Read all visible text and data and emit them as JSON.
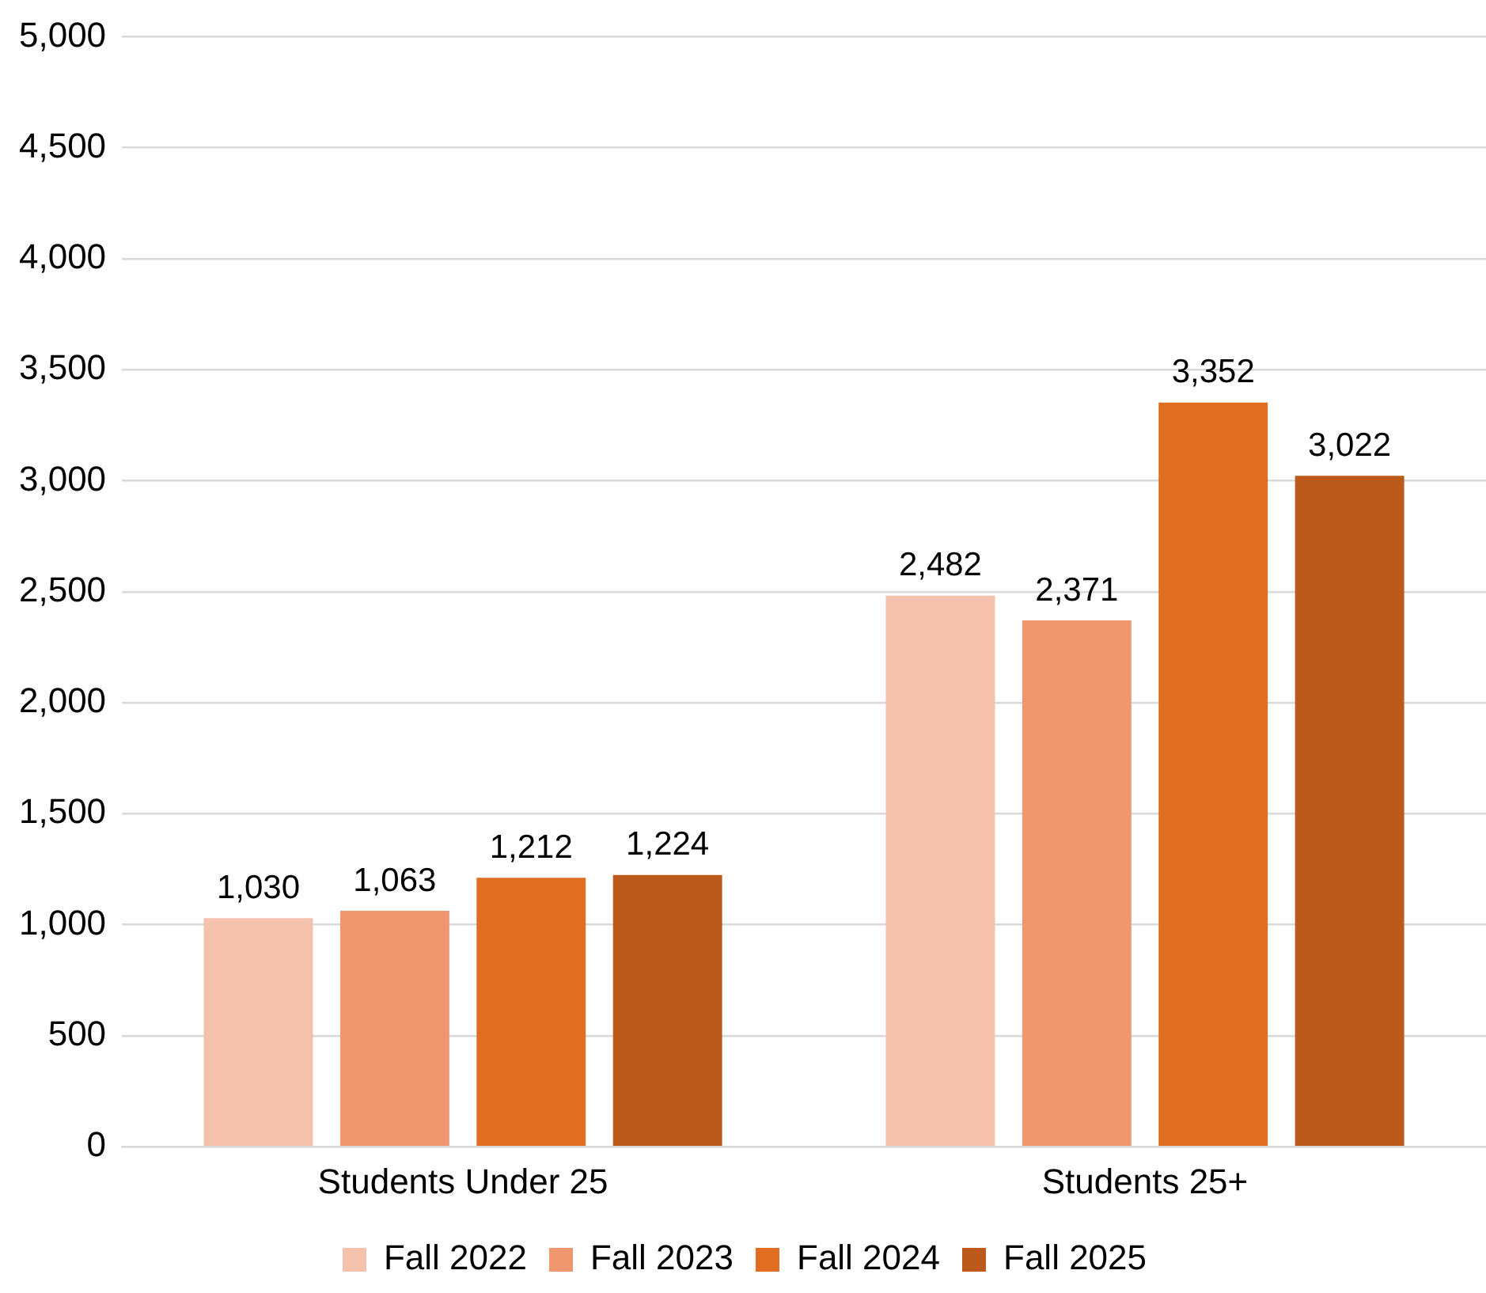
{
  "chart_data": {
    "type": "bar",
    "categories": [
      "Students Under 25",
      "Students 25+"
    ],
    "series": [
      {
        "name": "Fall 2022",
        "color": "#f4c1ad",
        "values": [
          1030,
          2482
        ],
        "value_labels": [
          "1,030",
          "2,482"
        ]
      },
      {
        "name": "Fall 2023",
        "color": "#f09770",
        "values": [
          1063,
          2371
        ],
        "value_labels": [
          "1,063",
          "2,371"
        ]
      },
      {
        "name": "Fall 2024",
        "color": "#e06e22",
        "values": [
          1212,
          3352
        ],
        "value_labels": [
          "1,212",
          "3,352"
        ]
      },
      {
        "name": "Fall 2025",
        "color": "#bb5a1a",
        "values": [
          1224,
          3022
        ],
        "value_labels": [
          "1,224",
          "3,022"
        ]
      }
    ],
    "ylim": [
      0,
      5000
    ],
    "yticks": [
      0,
      {
        "value": 500,
        "label": "500"
      },
      {
        "value": 1000,
        "label": "1,000"
      },
      {
        "value": 1500,
        "label": "1,500"
      },
      {
        "value": 2000,
        "label": "2,000"
      },
      {
        "value": 2500,
        "label": "2,500"
      },
      {
        "value": 3000,
        "label": "3,000"
      },
      {
        "value": 3500,
        "label": "3,500"
      },
      {
        "value": 4000,
        "label": "4,000"
      },
      {
        "value": 4500,
        "label": "4,500"
      },
      {
        "value": 5000,
        "label": "5,000"
      }
    ],
    "grid": "y",
    "legend": "bottom"
  }
}
